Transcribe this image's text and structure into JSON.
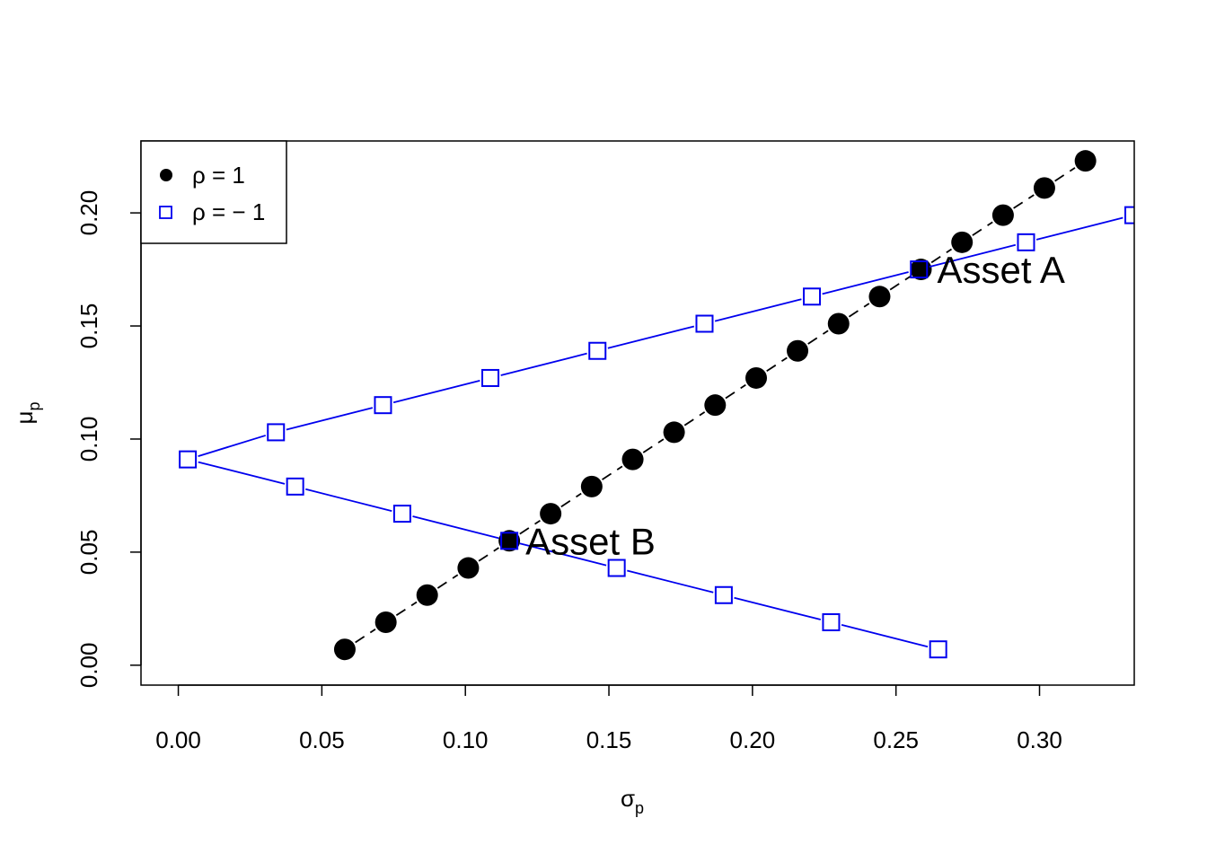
{
  "chart_data": {
    "type": "scatter",
    "title": "",
    "xlabel": "σ",
    "xlabel_sub": "p",
    "ylabel": "μ",
    "ylabel_sub": "p",
    "xlim": [
      -0.013,
      0.333
    ],
    "ylim": [
      -0.0088,
      0.2318
    ],
    "x_ticks": [
      "0.00",
      "0.05",
      "0.10",
      "0.15",
      "0.20",
      "0.25",
      "0.30"
    ],
    "y_ticks": [
      "0.00",
      "0.05",
      "0.10",
      "0.15",
      "0.20"
    ],
    "x_tick_values": [
      0.0,
      0.05,
      0.1,
      0.15,
      0.2,
      0.25,
      0.3
    ],
    "y_tick_values": [
      0.0,
      0.05,
      0.1,
      0.15,
      0.2
    ],
    "series": [
      {
        "name": "ρ = 1",
        "marker": "filled-circle",
        "line": "dashed",
        "color": "#000000",
        "x": [
          0.058,
          0.0723,
          0.0867,
          0.101,
          0.1153,
          0.1297,
          0.144,
          0.1583,
          0.1727,
          0.187,
          0.2013,
          0.2157,
          0.23,
          0.2443,
          0.2587,
          0.273,
          0.2873,
          0.3017,
          0.316
        ],
        "y": [
          0.007,
          0.019,
          0.031,
          0.043,
          0.055,
          0.067,
          0.079,
          0.091,
          0.103,
          0.115,
          0.127,
          0.139,
          0.151,
          0.163,
          0.175,
          0.187,
          0.199,
          0.211,
          0.223
        ]
      },
      {
        "name": "ρ = − 1",
        "marker": "open-square",
        "line": "solid",
        "color": "#0000ee",
        "x": [
          0.2647,
          0.2274,
          0.19,
          0.1527,
          0.1153,
          0.078,
          0.0407,
          0.0033,
          0.034,
          0.0713,
          0.1087,
          0.146,
          0.1833,
          0.2207,
          0.258,
          0.2953,
          0.3327
        ],
        "y": [
          0.007,
          0.019,
          0.031,
          0.043,
          0.055,
          0.067,
          0.079,
          0.091,
          0.103,
          0.115,
          0.127,
          0.139,
          0.151,
          0.163,
          0.175,
          0.187,
          0.199
        ]
      }
    ],
    "annotations": [
      {
        "text": "Asset A",
        "x": 0.2587,
        "y": 0.175
      },
      {
        "text": "Asset B",
        "x": 0.1153,
        "y": 0.055
      }
    ],
    "legend_position": "top-left"
  }
}
